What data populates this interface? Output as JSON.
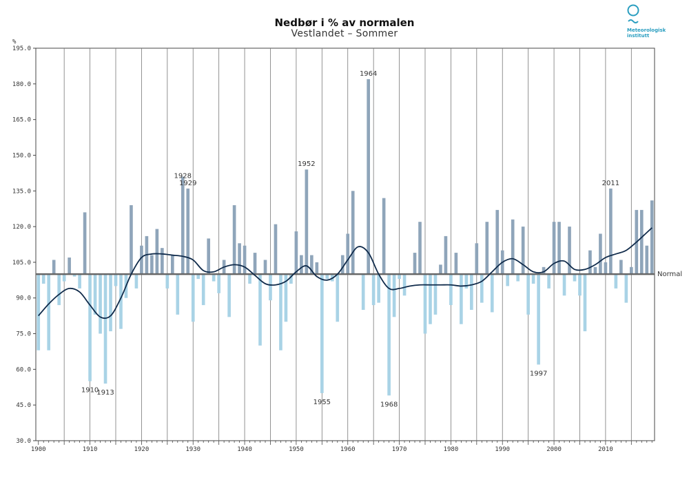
{
  "chart_data": {
    "type": "bar",
    "title": "Nedbør i % av normalen",
    "subtitle": "Vestlandet – Sommer",
    "ylabel": "%",
    "xlabel": "",
    "ylim": [
      30,
      195
    ],
    "xlim": [
      1899.5,
      2019.5
    ],
    "baseline": 100,
    "baseline_label": "Normal",
    "y_ticks": [
      "195.0",
      "180.0",
      "165.0",
      "150.0",
      "135.0",
      "120.0",
      "105.0",
      "90.0",
      "75.0",
      "60.0",
      "45.0",
      "30.0"
    ],
    "x_ticks": [
      "1900",
      "1910",
      "1920",
      "1930",
      "1940",
      "1950",
      "1960",
      "1970",
      "1980",
      "1990",
      "2000",
      "2010"
    ],
    "colors": {
      "above": "#8fa5ba",
      "below": "#a9d3e6",
      "trend": "#0f2a4a",
      "grid": "#777777",
      "baseline": "#666666"
    },
    "series": [
      {
        "name": "Nedbør",
        "x": [
          1900,
          1901,
          1902,
          1903,
          1904,
          1905,
          1906,
          1907,
          1908,
          1909,
          1910,
          1911,
          1912,
          1913,
          1914,
          1915,
          1916,
          1917,
          1918,
          1919,
          1920,
          1921,
          1922,
          1923,
          1924,
          1925,
          1926,
          1927,
          1928,
          1929,
          1930,
          1931,
          1932,
          1933,
          1934,
          1935,
          1936,
          1937,
          1938,
          1939,
          1940,
          1941,
          1942,
          1943,
          1944,
          1945,
          1946,
          1947,
          1948,
          1949,
          1950,
          1951,
          1952,
          1953,
          1954,
          1955,
          1956,
          1957,
          1958,
          1959,
          1960,
          1961,
          1962,
          1963,
          1964,
          1965,
          1966,
          1967,
          1968,
          1969,
          1970,
          1971,
          1972,
          1973,
          1974,
          1975,
          1976,
          1977,
          1978,
          1979,
          1980,
          1981,
          1982,
          1983,
          1984,
          1985,
          1986,
          1987,
          1988,
          1989,
          1990,
          1991,
          1992,
          1993,
          1994,
          1995,
          1996,
          1997,
          1998,
          1999,
          2000,
          2001,
          2002,
          2003,
          2004,
          2005,
          2006,
          2007,
          2008,
          2009,
          2010,
          2011,
          2012,
          2013,
          2014,
          2015,
          2016,
          2017,
          2018,
          2019
        ],
        "values": [
          68,
          96,
          68,
          106,
          87,
          97,
          107,
          99,
          94,
          126,
          55,
          83,
          75,
          54,
          76,
          95,
          77,
          90,
          129,
          94,
          112,
          116,
          108,
          119,
          111,
          94,
          108,
          83,
          141,
          136,
          80,
          98,
          87,
          115,
          97,
          92,
          106,
          82,
          129,
          113,
          112,
          96,
          109,
          70,
          106,
          89,
          121,
          68,
          80,
          96,
          118,
          108,
          144,
          108,
          105,
          50,
          98,
          97,
          80,
          108,
          117,
          135,
          100,
          85,
          182,
          87,
          88,
          132,
          49,
          82,
          98,
          91,
          100,
          109,
          122,
          75,
          79,
          83,
          104,
          116,
          87,
          109,
          79,
          94,
          85,
          113,
          88,
          122,
          84,
          127,
          110,
          95,
          123,
          97,
          120,
          83,
          96,
          62,
          103,
          94,
          122,
          122,
          91,
          120,
          97,
          91,
          76,
          110,
          103,
          117,
          105,
          136,
          94,
          106,
          88,
          103,
          127,
          127,
          112,
          131
        ]
      },
      {
        "name": "Trend",
        "x": [
          1900,
          1902,
          1904,
          1906,
          1908,
          1910,
          1912,
          1914,
          1916,
          1918,
          1920,
          1922,
          1924,
          1926,
          1928,
          1930,
          1932,
          1934,
          1936,
          1938,
          1940,
          1942,
          1944,
          1946,
          1948,
          1950,
          1952,
          1954,
          1956,
          1958,
          1960,
          1962,
          1964,
          1966,
          1968,
          1970,
          1972,
          1974,
          1976,
          1978,
          1980,
          1982,
          1984,
          1986,
          1988,
          1990,
          1992,
          1994,
          1996,
          1998,
          2000,
          2002,
          2004,
          2006,
          2008,
          2010,
          2012,
          2014,
          2016,
          2018,
          2019
        ],
        "values": [
          82.5,
          87.5,
          91.5,
          94,
          92.5,
          87,
          82,
          82.5,
          90,
          100,
          107,
          108.5,
          108.5,
          108,
          107.5,
          106,
          101.5,
          101,
          103,
          104,
          103,
          99.5,
          96,
          95.5,
          97,
          101,
          103.5,
          99,
          97.5,
          100,
          106,
          111.5,
          109,
          100,
          94,
          94,
          95,
          95.5,
          95.5,
          95.5,
          95.5,
          95,
          95.5,
          97,
          101,
          105,
          106.5,
          104,
          101,
          101,
          104.5,
          105.5,
          102,
          102,
          104,
          107,
          108.5,
          110,
          113.5,
          117.5,
          119.5
        ]
      }
    ],
    "annotations": [
      {
        "year": "1910",
        "value": 55,
        "position": "below"
      },
      {
        "year": "1913",
        "value": 54,
        "position": "below"
      },
      {
        "year": "1928",
        "value": 141,
        "position": "above-high"
      },
      {
        "year": "1929",
        "value": 136,
        "position": "above"
      },
      {
        "year": "1952",
        "value": 144,
        "position": "above"
      },
      {
        "year": "1955",
        "value": 50,
        "position": "below"
      },
      {
        "year": "1964",
        "value": 182,
        "position": "above"
      },
      {
        "year": "1968",
        "value": 49,
        "position": "below"
      },
      {
        "year": "1997",
        "value": 62,
        "position": "below"
      },
      {
        "year": "2011",
        "value": 136,
        "position": "above"
      }
    ]
  },
  "logo": {
    "line1": "Meteorologisk",
    "line2": "institutt"
  }
}
